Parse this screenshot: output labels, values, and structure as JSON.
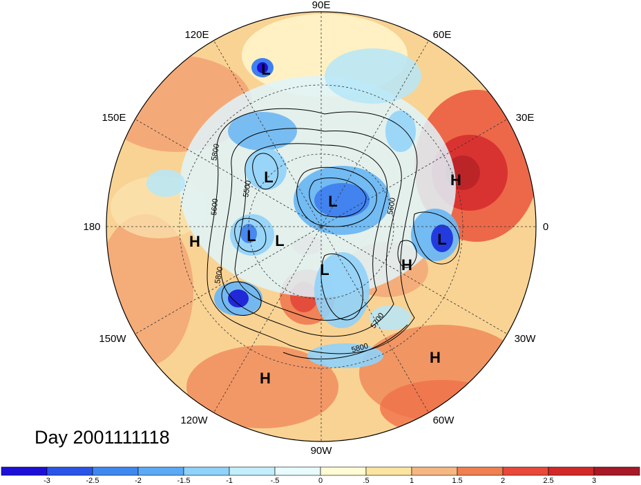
{
  "map": {
    "projection": "north-polar-stereographic",
    "longitude_labels": [
      "90E",
      "60E",
      "30E",
      "0",
      "30W",
      "60W",
      "90W",
      "120W",
      "150W",
      "180",
      "150E",
      "120E"
    ],
    "pressure_systems": [
      {
        "type": "L",
        "label": "L"
      },
      {
        "type": "L",
        "label": "L"
      },
      {
        "type": "L",
        "label": "L"
      },
      {
        "type": "L",
        "label": "L"
      },
      {
        "type": "L",
        "label": "L"
      },
      {
        "type": "L",
        "label": "L"
      },
      {
        "type": "L",
        "label": "L"
      },
      {
        "type": "H",
        "label": "H"
      },
      {
        "type": "H",
        "label": "H"
      },
      {
        "type": "H",
        "label": "H"
      },
      {
        "type": "H",
        "label": "H"
      },
      {
        "type": "H",
        "label": "H"
      }
    ],
    "contour_labels": [
      "5800",
      "5500",
      "5600",
      "5600",
      "5800",
      "5700",
      "5800"
    ],
    "colors": {
      "strong_negative": "#1a1adb",
      "negative": "#4ea0ee",
      "weak_negative": "#c8f0fb",
      "neutral": "#fffbd8",
      "weak_positive": "#f8dd92",
      "positive": "#f09b68",
      "strong_positive": "#e03a36"
    }
  },
  "title": {
    "text": "Day 2001111118"
  },
  "colorbar": {
    "tick_labels": [
      "-3",
      "-2.5",
      "-2",
      "-1.5",
      "-1",
      "-.5",
      "0",
      ".5",
      "1",
      "1.5",
      "2",
      "2.5",
      "3"
    ],
    "colors": [
      "#1c10d8",
      "#2b55e8",
      "#3f88f0",
      "#5aaaf5",
      "#8fd2fa",
      "#c3eefb",
      "#e8fbfd",
      "#fffbd4",
      "#fbe4a0",
      "#f6b782",
      "#f08050",
      "#e9483a",
      "#d32828",
      "#a81826"
    ]
  }
}
